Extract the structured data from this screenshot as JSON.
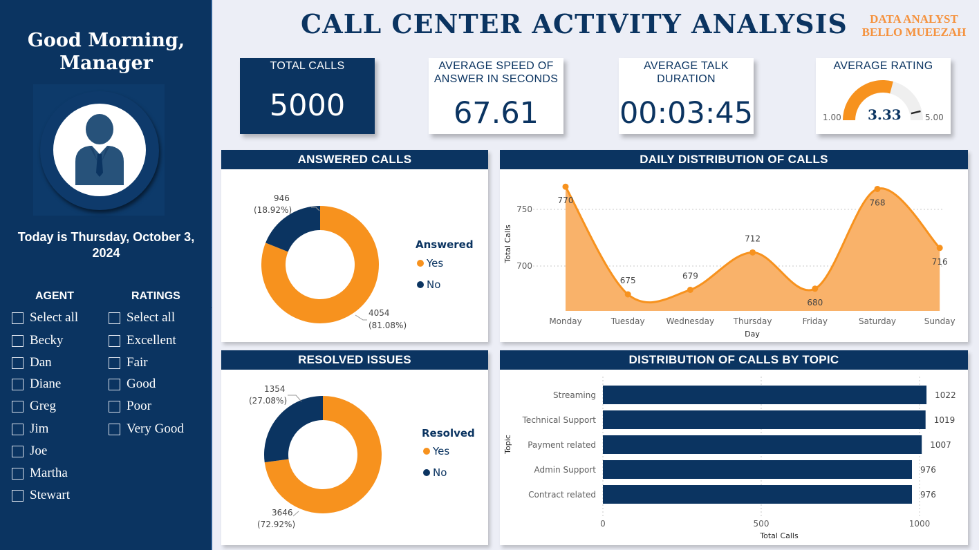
{
  "sidebar": {
    "greeting": "Good Morning,",
    "greeting_line2": "Manager",
    "today": "Today is Thursday, October 3,",
    "today_line2": "2024",
    "agent_title": "AGENT",
    "ratings_title": "RATINGS",
    "agents": [
      "Select all",
      "Becky",
      "Dan",
      "Diane",
      "Greg",
      "Jim",
      "Joe",
      "Martha",
      "Stewart"
    ],
    "ratings": [
      "Select all",
      "Excellent",
      "Fair",
      "Good",
      "Poor",
      "Very Good"
    ]
  },
  "header": {
    "title": "CALL CENTER ACTIVITY ANALYSIS",
    "analyst_role": "DATA ANALYST",
    "analyst_name": "BELLO MUEEZAH"
  },
  "kpis": {
    "total_calls": {
      "label": "TOTAL CALLS",
      "value": "5000"
    },
    "speed": {
      "label": "AVERAGE SPEED OF",
      "label2": "ANSWER IN SECONDS",
      "value": "67.61"
    },
    "talk": {
      "label": "AVERAGE TALK",
      "label2": "DURATION",
      "value": "00:03:45"
    },
    "rating": {
      "label": "AVERAGE RATING",
      "value": "3.33",
      "min": "1.00",
      "max": "5.00",
      "target_display": "4.7"
    }
  },
  "colors": {
    "navy": "#0b3461",
    "orange": "#f7921e",
    "area": "#f9b26a"
  },
  "chart_data": [
    {
      "type": "pie",
      "title": "ANSWERED CALLS",
      "legend_title": "Answered",
      "categories": [
        "Yes",
        "No"
      ],
      "values": [
        4054,
        946
      ],
      "labels": [
        "4054",
        "946"
      ],
      "percent_labels": [
        "(81.08%)",
        "(18.92%)"
      ]
    },
    {
      "type": "pie",
      "title": "RESOLVED ISSUES",
      "legend_title": "Resolved",
      "categories": [
        "Yes",
        "No"
      ],
      "values": [
        3646,
        1354
      ],
      "labels": [
        "3646",
        "1354"
      ],
      "percent_labels": [
        "(72.92%)",
        "(27.08%)"
      ]
    },
    {
      "type": "area",
      "title": "DAILY DISTRIBUTION OF CALLS",
      "xlabel": "Day",
      "ylabel": "Total Calls",
      "categories": [
        "Monday",
        "Tuesday",
        "Wednesday",
        "Thursday",
        "Friday",
        "Saturday",
        "Sunday"
      ],
      "values": [
        770,
        675,
        679,
        712,
        680,
        768,
        716
      ],
      "value_labels": [
        "770",
        "675",
        "679",
        "712",
        "680",
        "768",
        "716"
      ],
      "yticks": [
        "700",
        "750"
      ],
      "grid": true
    },
    {
      "type": "bar",
      "orientation": "horizontal",
      "title": "DISTRIBUTION OF CALLS BY TOPIC",
      "xlabel": "Total Calls",
      "ylabel": "Topic",
      "categories": [
        "Streaming",
        "Technical Support",
        "Payment related",
        "Admin Support",
        "Contract related"
      ],
      "values": [
        1022,
        1019,
        1007,
        976,
        976
      ],
      "value_labels": [
        "1022",
        "1019",
        "1007",
        "976",
        "976"
      ],
      "xticks": [
        "0",
        "500",
        "1000"
      ],
      "xlim": [
        0,
        1000
      ],
      "grid": true
    }
  ]
}
